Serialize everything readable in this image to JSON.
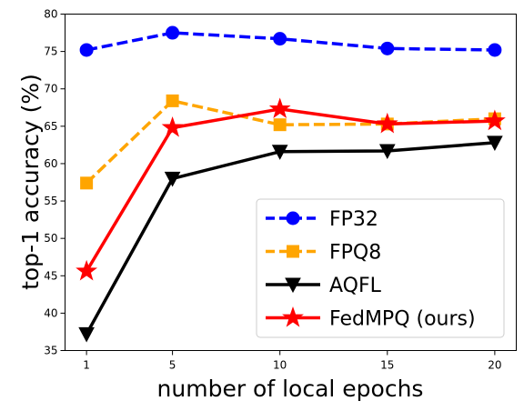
{
  "chart_data": {
    "type": "line",
    "title": "",
    "xlabel": "number of local epochs",
    "ylabel": "top-1 accuracy (%)",
    "x": [
      1,
      5,
      10,
      15,
      20
    ],
    "xticks": [
      "1",
      "5",
      "10",
      "15",
      "20"
    ],
    "xlim": [
      0,
      21
    ],
    "ylim": [
      35,
      80
    ],
    "yticks": [
      "35",
      "40",
      "45",
      "50",
      "55",
      "60",
      "65",
      "70",
      "75",
      "80"
    ],
    "grid": false,
    "legend_position": "lower-right",
    "series": [
      {
        "name": "FP32",
        "values": [
          75.2,
          77.5,
          76.7,
          75.4,
          75.2
        ],
        "color": "#0000ff",
        "style": "dashed",
        "marker": "circle"
      },
      {
        "name": "FPQ8",
        "values": [
          57.4,
          68.4,
          65.2,
          65.3,
          66.0
        ],
        "color": "#ffa500",
        "style": "dashed",
        "marker": "square"
      },
      {
        "name": "AQFL",
        "values": [
          37.2,
          58.0,
          61.6,
          61.7,
          62.8
        ],
        "color": "#000000",
        "style": "solid",
        "marker": "triangle-down"
      },
      {
        "name": "FedMPQ (ours)",
        "values": [
          45.6,
          64.8,
          67.3,
          65.3,
          65.7
        ],
        "color": "#ff0000",
        "style": "solid",
        "marker": "star"
      }
    ]
  }
}
